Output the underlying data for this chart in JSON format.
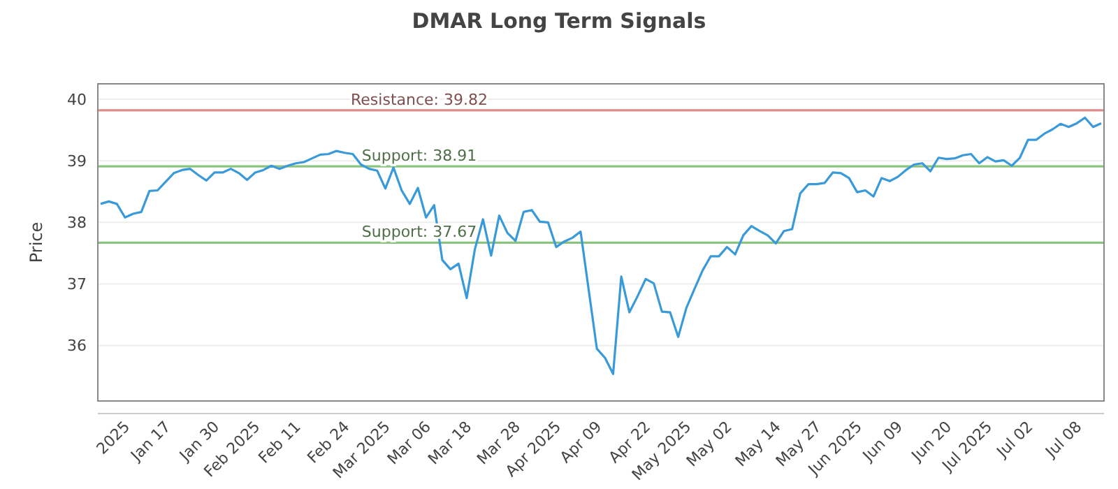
{
  "chart_data": {
    "type": "line",
    "title": "DMAR Long Term Signals",
    "ylabel": "Price",
    "categories": [
      null,
      null,
      null,
      "2025",
      null,
      null,
      null,
      null,
      "Jan 17",
      null,
      null,
      null,
      null,
      null,
      "Jan 30",
      null,
      null,
      null,
      null,
      "Feb 2025",
      null,
      null,
      null,
      null,
      "Feb 11",
      null,
      null,
      null,
      null,
      null,
      "Feb 24",
      null,
      null,
      null,
      null,
      "Mar 2025",
      null,
      null,
      null,
      null,
      "Mar 06",
      null,
      null,
      null,
      null,
      "Mar 18",
      null,
      null,
      null,
      null,
      null,
      "Mar 28",
      null,
      null,
      null,
      null,
      "Apr 2025",
      null,
      null,
      null,
      null,
      "Apr 09",
      null,
      null,
      null,
      null,
      null,
      "Apr 22",
      null,
      null,
      null,
      null,
      "May 2025",
      null,
      null,
      null,
      null,
      "May 02",
      null,
      null,
      null,
      null,
      null,
      "May 14",
      null,
      null,
      null,
      null,
      "May 27",
      null,
      null,
      null,
      null,
      "Jun 2025",
      null,
      null,
      null,
      null,
      "Jun 09",
      null,
      null,
      null,
      null,
      null,
      "Jun 20",
      null,
      null,
      null,
      null,
      "Jul 2025",
      null,
      null,
      null,
      null,
      "Jul 02",
      null,
      null,
      null,
      null,
      null,
      "Jul 08",
      null,
      null,
      null
    ],
    "series": [
      {
        "color": "#3a9ad9",
        "values": [
          38.3,
          38.34,
          38.3,
          38.08,
          38.14,
          38.17,
          38.51,
          38.52,
          38.66,
          38.8,
          38.85,
          38.87,
          38.77,
          38.68,
          38.81,
          38.81,
          38.87,
          38.8,
          38.69,
          38.81,
          38.85,
          38.92,
          38.87,
          38.92,
          38.96,
          38.98,
          39.04,
          39.1,
          39.11,
          39.16,
          39.13,
          39.11,
          38.94,
          38.87,
          38.84,
          38.55,
          38.89,
          38.52,
          38.3,
          38.56,
          38.08,
          38.28,
          37.39,
          37.24,
          37.33,
          36.77,
          37.56,
          38.05,
          37.46,
          38.11,
          37.83,
          37.7,
          38.17,
          38.2,
          38.01,
          38.0,
          37.6,
          37.69,
          37.75,
          37.85,
          36.9,
          35.95,
          35.8,
          35.54,
          37.12,
          36.54,
          36.8,
          37.08,
          37.01,
          36.55,
          36.54,
          36.14,
          36.61,
          36.92,
          37.22,
          37.45,
          37.45,
          37.6,
          37.48,
          37.79,
          37.94,
          37.86,
          37.79,
          37.66,
          37.86,
          37.89,
          38.47,
          38.62,
          38.62,
          38.64,
          38.81,
          38.8,
          38.72,
          38.49,
          38.52,
          38.42,
          38.72,
          38.67,
          38.74,
          38.85,
          38.94,
          38.96,
          38.83,
          39.05,
          39.03,
          39.04,
          39.09,
          39.11,
          38.96,
          39.06,
          38.99,
          39.01,
          38.92,
          39.05,
          39.34,
          39.34,
          39.44,
          39.51,
          39.6,
          39.55,
          39.61,
          39.7,
          39.55,
          39.61
        ]
      }
    ],
    "ylim": [
      35.1,
      40.25
    ],
    "yticks": [
      36,
      37,
      38,
      39,
      40
    ],
    "grid": "y",
    "marker": "none",
    "line_style": "solid",
    "ref_lines": [
      {
        "axis": "y",
        "value": 39.82,
        "label": "Resistance: 39.82",
        "color": "#e08c8c"
      },
      {
        "axis": "y",
        "value": 38.91,
        "label": "Support: 38.91",
        "color": "#8cc47f"
      },
      {
        "axis": "y",
        "value": 37.67,
        "label": "Support: 37.67",
        "color": "#8cc47f"
      }
    ]
  }
}
